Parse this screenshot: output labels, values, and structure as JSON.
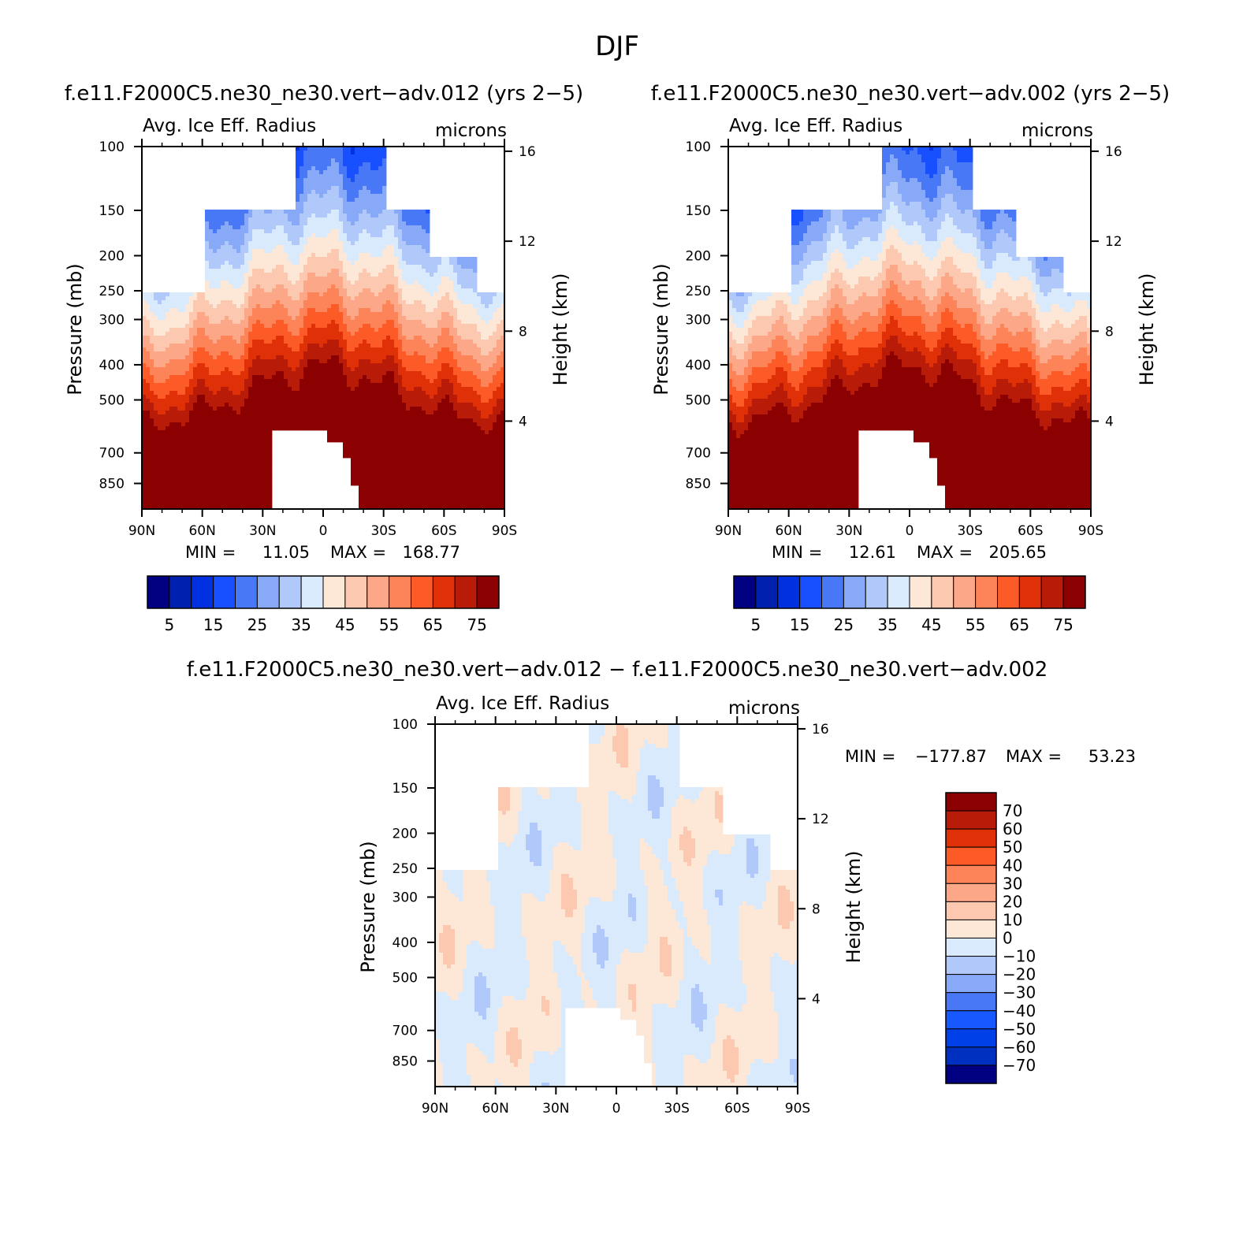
{
  "figure": {
    "season": "DJF",
    "diff_title": "f.e11.F2000C5.ne30_ne30.vert−adv.012 − f.e11.F2000C5.ne30_ne30.vert−adv.002"
  },
  "colors": {
    "rb16": [
      "#000080",
      "#0020b0",
      "#0030e0",
      "#1850ff",
      "#4878f5",
      "#88a8f8",
      "#b0c8fa",
      "#d8eafc",
      "#fde8d8",
      "#fcc8b0",
      "#fca888",
      "#fc8458",
      "#fc5a26",
      "#e03008",
      "#b81c08",
      "#8b0000"
    ],
    "diff16": [
      "#000080",
      "#0030c0",
      "#0040e8",
      "#1858ff",
      "#4878f5",
      "#88a8f8",
      "#b0c8fa",
      "#d8eafc",
      "#fde8d8",
      "#fcc8b0",
      "#fca888",
      "#fc8458",
      "#fc5a26",
      "#e03008",
      "#b81c08",
      "#8b0000"
    ]
  },
  "chart_data": [
    {
      "type": "heatmap",
      "title": "f.e11.F2000C5.ne30_ne30.vert−adv.012 (yrs 2−5)",
      "left_label": "Avg. Ice Eff. Radius",
      "right_label": "microns",
      "ylabel": "Pressure (mb)",
      "y2label": "Height (km)",
      "x_ticks": [
        "90N",
        "60N",
        "30N",
        "0",
        "30S",
        "60S",
        "90S"
      ],
      "y_ticks": [
        100,
        150,
        200,
        250,
        300,
        400,
        500,
        700,
        850
      ],
      "y2_ticks": [
        16,
        12,
        8,
        4
      ],
      "min_label": "MIN =",
      "min": "11.05",
      "max_label": "MAX =",
      "max": "168.77",
      "colorbar_labels": [
        "5",
        "15",
        "25",
        "35",
        "45",
        "55",
        "65",
        "75"
      ]
    },
    {
      "type": "heatmap",
      "title": "f.e11.F2000C5.ne30_ne30.vert−adv.002 (yrs 2−5)",
      "left_label": "Avg. Ice Eff. Radius",
      "right_label": "microns",
      "ylabel": "Pressure (mb)",
      "y2label": "Height (km)",
      "x_ticks": [
        "90N",
        "60N",
        "30N",
        "0",
        "30S",
        "60S",
        "90S"
      ],
      "y_ticks": [
        100,
        150,
        200,
        250,
        300,
        400,
        500,
        700,
        850
      ],
      "y2_ticks": [
        16,
        12,
        8,
        4
      ],
      "min_label": "MIN =",
      "min": "12.61",
      "max_label": "MAX =",
      "max": "205.65",
      "colorbar_labels": [
        "5",
        "15",
        "25",
        "35",
        "45",
        "55",
        "65",
        "75"
      ]
    },
    {
      "type": "heatmap",
      "left_label": "Avg. Ice Eff. Radius",
      "right_label": "microns",
      "ylabel": "Pressure (mb)",
      "y2label": "Height (km)",
      "x_ticks": [
        "90N",
        "60N",
        "30N",
        "0",
        "30S",
        "60S",
        "90S"
      ],
      "y_ticks": [
        100,
        150,
        200,
        250,
        300,
        400,
        500,
        700,
        850
      ],
      "y2_ticks": [
        16,
        12,
        8,
        4
      ],
      "min_label": "MIN =",
      "min": "−177.87",
      "max_label": "MAX =",
      "max": "53.23",
      "colorbar_labels": [
        "70",
        "60",
        "50",
        "40",
        "30",
        "20",
        "10",
        "0",
        "−10",
        "−20",
        "−30",
        "−40",
        "−50",
        "−60",
        "−70"
      ]
    }
  ]
}
